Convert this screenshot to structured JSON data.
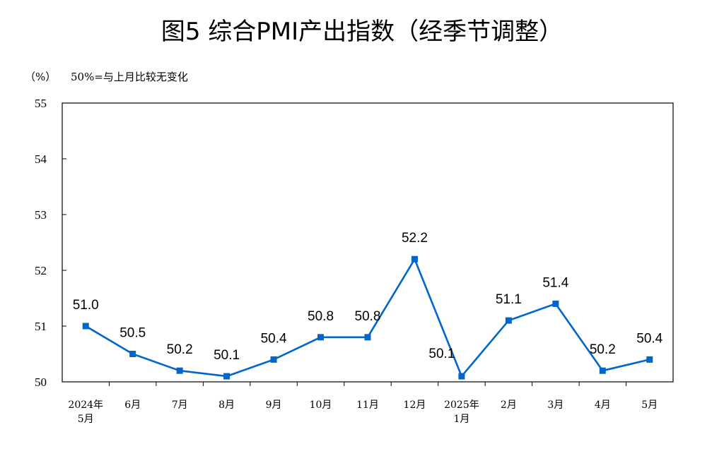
{
  "chart_data": {
    "type": "line",
    "title": "图5  综合PMI产出指数（经季节调整）",
    "unit_label": "（%）",
    "note": "50%=与上月比较无变化",
    "categories": [
      [
        "2024年",
        "5月"
      ],
      [
        "6月"
      ],
      [
        "7月"
      ],
      [
        "8月"
      ],
      [
        "9月"
      ],
      [
        "10月"
      ],
      [
        "11月"
      ],
      [
        "12月"
      ],
      [
        "2025年",
        "1月"
      ],
      [
        "2月"
      ],
      [
        "3月"
      ],
      [
        "4月"
      ],
      [
        "5月"
      ]
    ],
    "series": [
      {
        "values": [
          51.0,
          50.5,
          50.2,
          50.1,
          50.4,
          50.8,
          50.8,
          52.2,
          50.1,
          51.1,
          51.4,
          50.2,
          50.4
        ],
        "data_labels": [
          "51.0",
          "50.5",
          "50.2",
          "50.1",
          "50.4",
          "50.8",
          "50.8",
          "52.2",
          "50.1",
          "51.1",
          "51.4",
          "50.2",
          "50.4"
        ],
        "color": "#0066CC"
      }
    ],
    "ylim": [
      50,
      55
    ],
    "yticks": [
      50,
      51,
      52,
      53,
      54,
      55
    ],
    "grid": false,
    "legend": "none",
    "marker": "square"
  }
}
